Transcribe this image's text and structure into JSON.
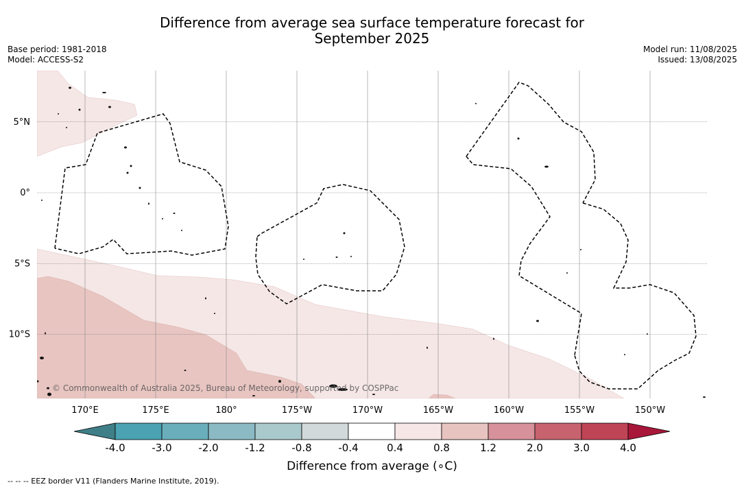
{
  "title_line1": "Difference from average sea surface temperature forecast for",
  "title_line2": "September 2025",
  "base_period": "Base period: 1981-2018",
  "model": "Model: ACCESS-S2",
  "model_run": "Model run: 11/08/2025",
  "issued": "Issued: 13/08/2025",
  "copyright": "© Commonwealth of Australia 2025, Bureau of Meteorology, supported by COSPPac",
  "footnote": "--  --  -- EEZ border V11 (Flanders Marine Institute, 2019).",
  "latitude_labels": [
    {
      "label": "5°N",
      "value": 5
    },
    {
      "label": "0°",
      "value": 0
    },
    {
      "label": "5°S",
      "value": -5
    },
    {
      "label": "10°S",
      "value": -10
    }
  ],
  "longitude_labels": [
    {
      "label": "170°E",
      "value": 170
    },
    {
      "label": "175°E",
      "value": 175
    },
    {
      "label": "180°",
      "value": 180
    },
    {
      "label": "175°W",
      "value": 185
    },
    {
      "label": "170°W",
      "value": 190
    },
    {
      "label": "165°W",
      "value": 195
    },
    {
      "label": "160°W",
      "value": 200
    },
    {
      "label": "155°W",
      "value": 205
    },
    {
      "label": "150°W",
      "value": 210
    }
  ],
  "colorbar": {
    "label": "Difference from average (∘C)",
    "ticks": [
      "-4.0",
      "-3.0",
      "-2.0",
      "-1.2",
      "-0.8",
      "-0.4",
      "0.4",
      "0.8",
      "1.2",
      "2.0",
      "3.0",
      "4.0"
    ],
    "under_color": "#3f7f87",
    "over_color": "#a8173a",
    "colors": [
      "#4aa2b2",
      "#6aaebb",
      "#8bbac4",
      "#aac9cd",
      "#d1d9da",
      "#ffffff",
      "#f6e7e6",
      "#e8c4c0",
      "#d6919a",
      "#c7636f",
      "#bf4455"
    ]
  },
  "anomaly_colors": {
    "light": "#f5e7e6",
    "medium": "#e8c5c1"
  }
}
